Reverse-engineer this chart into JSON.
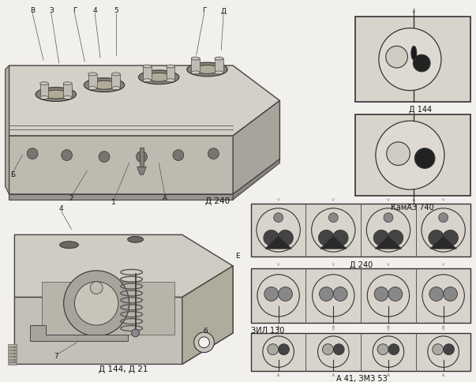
{
  "bg_color": "#f2f0ec",
  "text_color": "#111111",
  "line_color": "#333333",
  "gray_light": "#d8d4cc",
  "gray_mid": "#b8b4ac",
  "gray_dark": "#888480",
  "gray_face": "#c8c4bc",
  "white_ish": "#e8e5de",
  "labels": {
    "d240_top": "Д 240",
    "d144_d21": "Д 144, Д 21",
    "d144": "Д 144",
    "kamaz740": "КамАЗ 740",
    "d240_right": "Д 240",
    "zil130": "ЗИЛ 130",
    "a41_zmz53": "А 41, ЗМЗ 53",
    "E": "Е",
    "6": "6",
    "7": "7",
    "4_bl": "4"
  },
  "top_left_labels": [
    [
      "В",
      38,
      14,
      52,
      78
    ],
    [
      "З",
      62,
      14,
      72,
      82
    ],
    [
      "Г",
      92,
      14,
      105,
      80
    ],
    [
      "4",
      118,
      14,
      125,
      75
    ],
    [
      "5",
      145,
      14,
      145,
      72
    ],
    [
      "Г",
      258,
      14,
      248,
      72
    ],
    [
      "Д",
      283,
      14,
      280,
      65
    ]
  ],
  "bot_labels": [
    [
      "Б",
      13,
      224,
      25,
      200
    ],
    [
      "2",
      88,
      255,
      108,
      220
    ],
    [
      "1",
      142,
      260,
      162,
      210
    ],
    [
      "А",
      208,
      255,
      200,
      210
    ]
  ]
}
